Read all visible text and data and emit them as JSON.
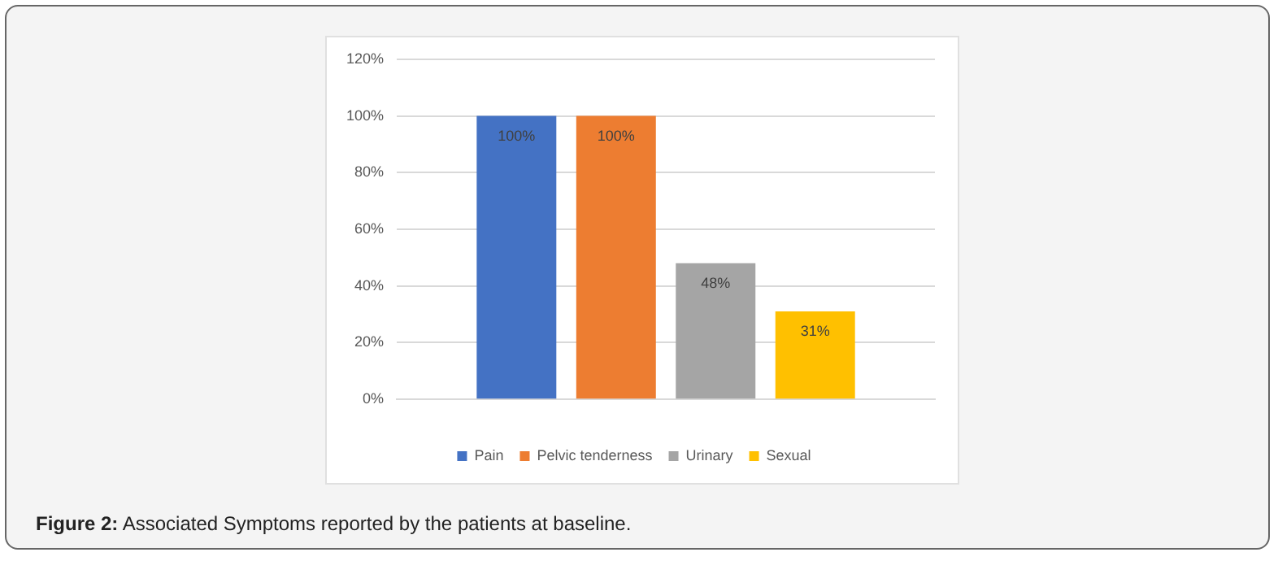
{
  "chart_data": {
    "type": "bar",
    "categories": [
      null
    ],
    "series": [
      {
        "name": "Pain",
        "color": "#4472c4",
        "values": [
          100
        ],
        "value_labels": [
          "100%"
        ]
      },
      {
        "name": "Pelvic tenderness",
        "color": "#ed7d31",
        "values": [
          100
        ],
        "value_labels": [
          "100%"
        ]
      },
      {
        "name": "Urinary",
        "color": "#a5a5a5",
        "values": [
          48
        ],
        "value_labels": [
          "48%"
        ]
      },
      {
        "name": "Sexual",
        "color": "#ffc000",
        "values": [
          31
        ],
        "value_labels": [
          "31%"
        ]
      }
    ],
    "ylim": [
      0,
      120
    ],
    "yticks": [
      {
        "value": 0,
        "label": "0%"
      },
      {
        "value": 20,
        "label": "20%"
      },
      {
        "value": 40,
        "label": "40%"
      },
      {
        "value": 60,
        "label": "60%"
      },
      {
        "value": 80,
        "label": "80%"
      },
      {
        "value": 100,
        "label": "100%"
      },
      {
        "value": 120,
        "label": "120%"
      }
    ],
    "grid": "y",
    "legend": "bottom",
    "annotations": [
      "Figure 2: Associated Symptoms reported by the patients at baseline."
    ]
  }
}
